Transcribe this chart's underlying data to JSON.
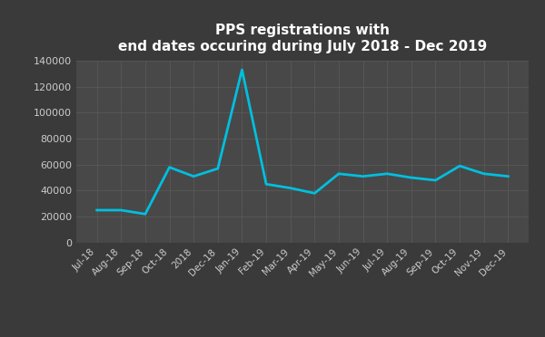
{
  "title_line1": "PPS registrations with",
  "title_line2": "end dates occuring during July 2018 - Dec 2019",
  "x_labels": [
    "Jul-18",
    "Aug-18",
    "Sep-18",
    "Oct-18",
    "2018",
    "Dec-18",
    "Jan-19",
    "Feb-19",
    "Mar-19",
    "Apr-19",
    "May-19",
    "Jun-19",
    "Jul-19",
    "Aug-19",
    "Sep-19",
    "Oct-19",
    "Nov-19",
    "Dec-19"
  ],
  "values": [
    25000,
    25000,
    22000,
    58000,
    51000,
    57000,
    133000,
    45000,
    42000,
    38000,
    53000,
    51000,
    53000,
    50000,
    48000,
    59000,
    53000,
    51000
  ],
  "line_color": "#00BFDF",
  "bg_color": "#3a3a3a",
  "plot_bg_color": "#484848",
  "title_color": "#ffffff",
  "tick_color": "#cccccc",
  "grid_color": "#5a5a5a",
  "ylim": [
    0,
    140000
  ],
  "yticks": [
    0,
    20000,
    40000,
    60000,
    80000,
    100000,
    120000,
    140000
  ]
}
